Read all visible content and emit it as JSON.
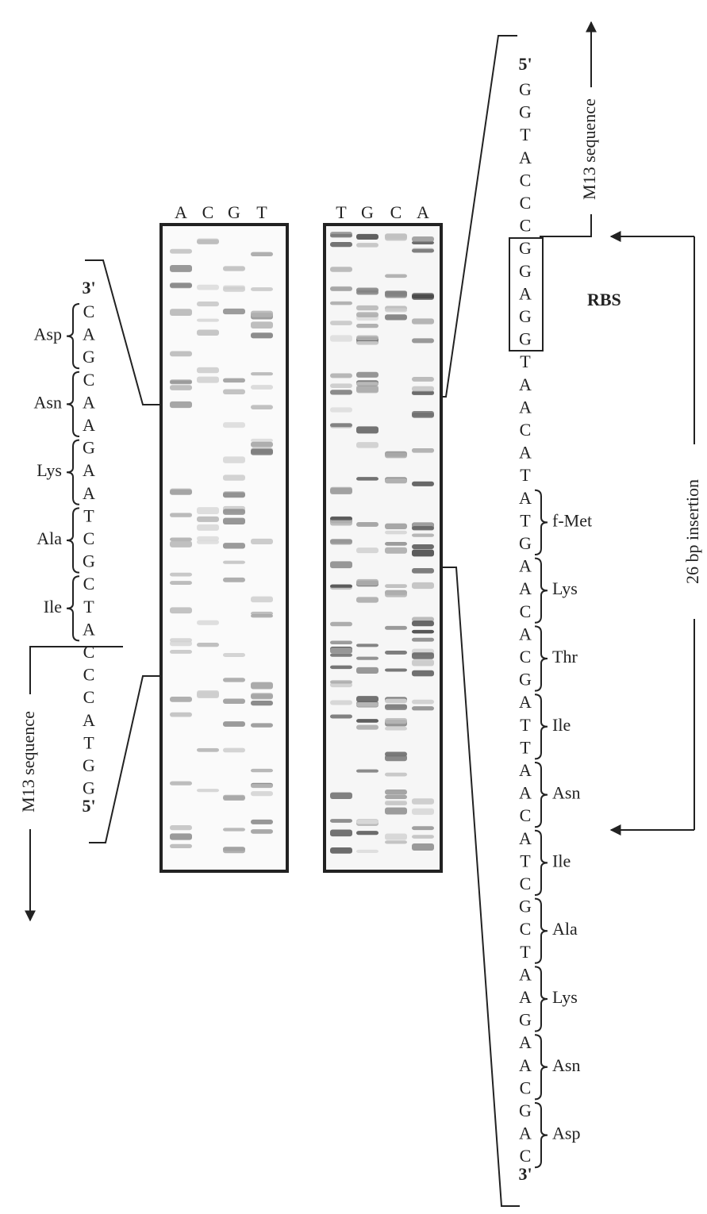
{
  "left": {
    "lanes": [
      "A",
      "C",
      "G",
      "T"
    ],
    "three_prime": "3'",
    "bases": [
      "C",
      "A",
      "G",
      "C",
      "A",
      "A",
      "G",
      "A",
      "A",
      "T",
      "C",
      "G",
      "C",
      "T",
      "A",
      "C",
      "C",
      "C",
      "A",
      "T",
      "G",
      "G"
    ],
    "five_prime": "5'",
    "codons": [
      "Asp",
      "Asn",
      "Lys",
      "Ala",
      "Ile"
    ],
    "m13_label": "M13 sequence"
  },
  "right": {
    "lanes": [
      "T",
      "G",
      "C",
      "A"
    ],
    "five_prime": "5'",
    "bases": [
      "G",
      "G",
      "T",
      "A",
      "C",
      "C",
      "C",
      "G",
      "G",
      "A",
      "G",
      "G",
      "T",
      "A",
      "A",
      "C",
      "A",
      "T",
      "A",
      "T",
      "G",
      "A",
      "A",
      "C",
      "A",
      "C",
      "G",
      "A",
      "T",
      "T",
      "A",
      "A",
      "C",
      "A",
      "T",
      "C",
      "G",
      "C",
      "T",
      "A",
      "A",
      "G",
      "A",
      "A",
      "C",
      "G",
      "A",
      "C"
    ],
    "three_prime": "3'",
    "codons": [
      "f-Met",
      "Lys",
      "Thr",
      "Ile",
      "Asn",
      "Ile",
      "Ala",
      "Lys",
      "Asn",
      "Asp"
    ],
    "rbs_label": "RBS",
    "m13_label": "M13 sequence",
    "insertion_label": "26 bp insertion"
  }
}
